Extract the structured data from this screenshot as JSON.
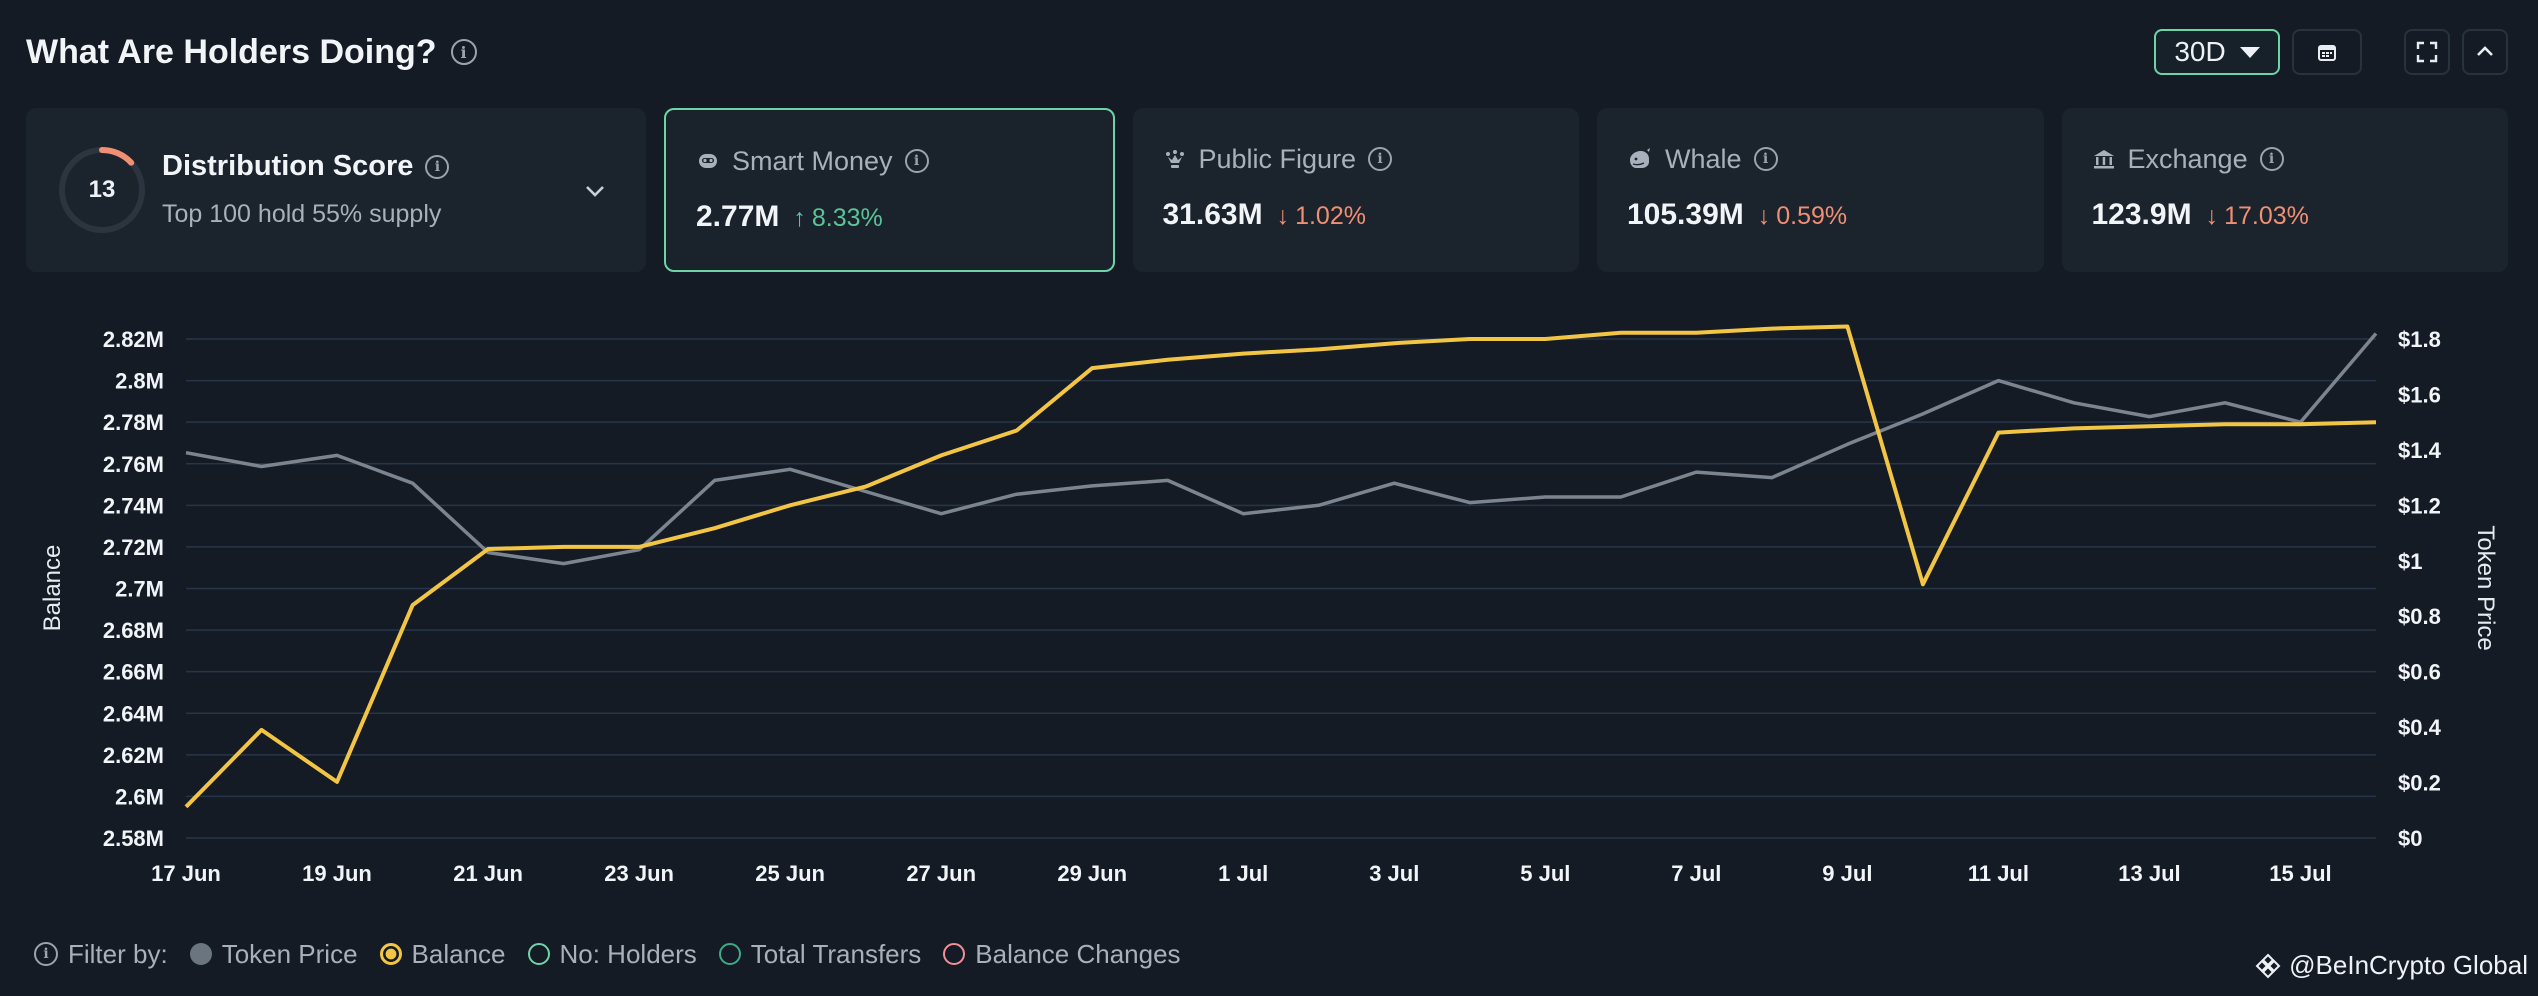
{
  "header": {
    "title": "What Are Holders Doing?",
    "range_label": "30D"
  },
  "distribution": {
    "score": "13",
    "score_value": 13,
    "score_max": 100,
    "title": "Distribution Score",
    "subtitle": "Top 100 hold 55% supply"
  },
  "metrics": [
    {
      "label": "Smart Money",
      "value": "2.77M",
      "change": "8.33%",
      "direction": "up",
      "icon": "robot-icon",
      "active": true
    },
    {
      "label": "Public Figure",
      "value": "31.63M",
      "change": "1.02%",
      "direction": "down",
      "icon": "crown-icon",
      "active": false
    },
    {
      "label": "Whale",
      "value": "105.39M",
      "change": "0.59%",
      "direction": "down",
      "icon": "whale-icon",
      "active": false
    },
    {
      "label": "Exchange",
      "value": "123.9M",
      "change": "17.03%",
      "direction": "down",
      "icon": "bank-icon",
      "active": false
    }
  ],
  "filter": {
    "label": "Filter by:",
    "items": [
      {
        "label": "Token Price",
        "color": "#6b7580",
        "state": "filled"
      },
      {
        "label": "Balance",
        "color": "#f3c545",
        "state": "selected"
      },
      {
        "label": "No: Holders",
        "color": "#6fd3a8",
        "state": "outline"
      },
      {
        "label": "Total Transfers",
        "color": "#3fa886",
        "state": "outline"
      },
      {
        "label": "Balance Changes",
        "color": "#f08f9a",
        "state": "outline"
      }
    ]
  },
  "watermark": "@BeInCrypto Global",
  "chart_data": {
    "type": "line",
    "ylabel": "Balance",
    "y2label": "Token Price",
    "x_tick_labels": [
      "17 Jun",
      "19 Jun",
      "21 Jun",
      "23 Jun",
      "25 Jun",
      "27 Jun",
      "29 Jun",
      "1 Jul",
      "3 Jul",
      "5 Jul",
      "7 Jul",
      "9 Jul",
      "11 Jul",
      "13 Jul",
      "15 Jul"
    ],
    "y_tick_labels": [
      "2.58M",
      "2.6M",
      "2.62M",
      "2.64M",
      "2.66M",
      "2.68M",
      "2.7M",
      "2.72M",
      "2.74M",
      "2.76M",
      "2.78M",
      "2.8M",
      "2.82M"
    ],
    "y2_tick_labels": [
      "$0",
      "$0.2",
      "$0.4",
      "$0.6",
      "$0.8",
      "$1",
      "$1.2",
      "$1.4",
      "$1.6",
      "$1.8"
    ],
    "ylim": [
      2.58,
      2.82
    ],
    "y2lim": [
      0,
      1.8
    ],
    "grid": true,
    "series": [
      {
        "name": "Balance",
        "axis": "left",
        "color": "#f3c545",
        "values": [
          2.595,
          2.632,
          2.607,
          2.692,
          2.719,
          2.72,
          2.72,
          2.729,
          2.74,
          2.749,
          2.764,
          2.776,
          2.806,
          2.81,
          2.813,
          2.815,
          2.818,
          2.82,
          2.82,
          2.823,
          2.823,
          2.825,
          2.826,
          2.702,
          2.775,
          2.777,
          2.778,
          2.779,
          2.779,
          2.78
        ]
      },
      {
        "name": "Token Price",
        "axis": "right",
        "color": "#7c858f",
        "values": [
          1.39,
          1.34,
          1.38,
          1.28,
          1.03,
          0.99,
          1.04,
          1.29,
          1.33,
          1.25,
          1.17,
          1.24,
          1.27,
          1.29,
          1.17,
          1.2,
          1.28,
          1.21,
          1.23,
          1.23,
          1.32,
          1.3,
          1.42,
          1.53,
          1.65,
          1.57,
          1.52,
          1.57,
          1.5,
          1.82
        ]
      }
    ]
  }
}
